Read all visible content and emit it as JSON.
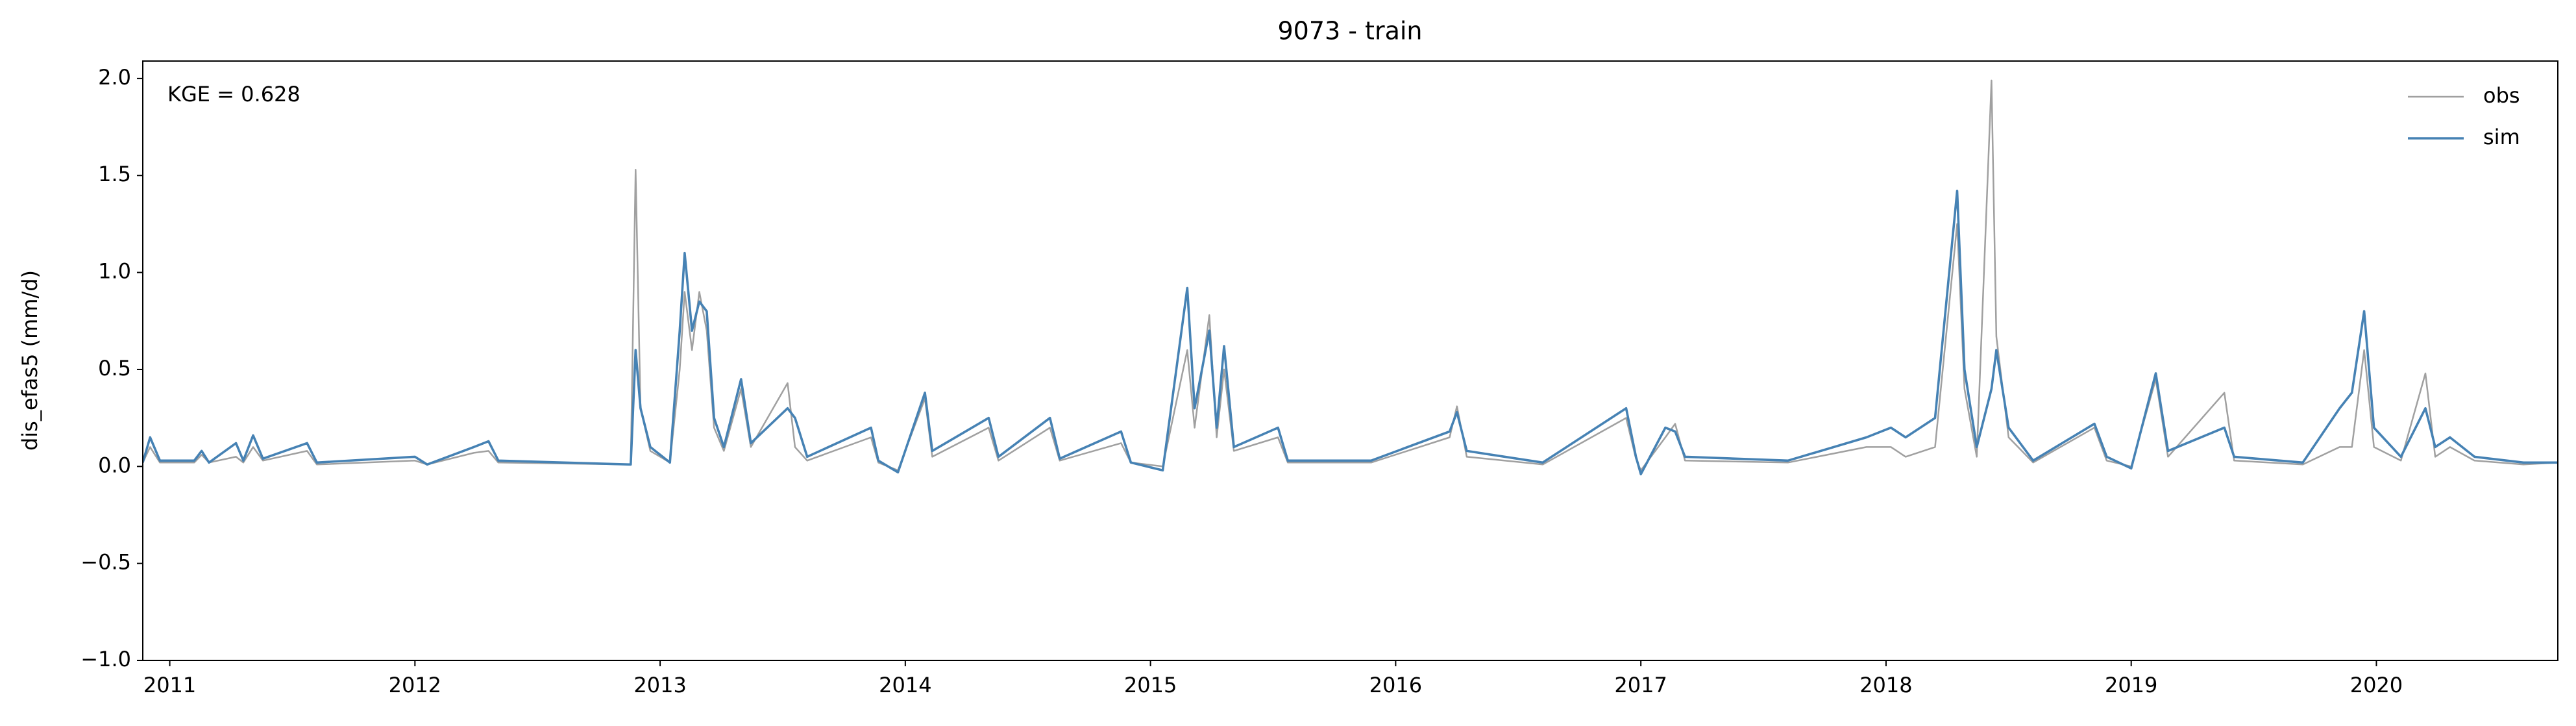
{
  "chart_data": {
    "type": "line",
    "title": "9073 - train",
    "ylabel": "dis_efas5 (mm/d)",
    "annotation": "KGE = 0.628",
    "x": [
      2010.89,
      2010.92,
      2010.96,
      2011.1,
      2011.13,
      2011.16,
      2011.27,
      2011.3,
      2011.34,
      2011.38,
      2011.56,
      2011.6,
      2012.0,
      2012.05,
      2012.24,
      2012.3,
      2012.34,
      2012.88,
      2012.9,
      2012.92,
      2012.96,
      2013.04,
      2013.08,
      2013.1,
      2013.13,
      2013.16,
      2013.19,
      2013.22,
      2013.26,
      2013.33,
      2013.37,
      2013.52,
      2013.55,
      2013.6,
      2013.86,
      2013.89,
      2013.97,
      2014.08,
      2014.11,
      2014.34,
      2014.38,
      2014.59,
      2014.63,
      2014.88,
      2014.92,
      2015.05,
      2015.15,
      2015.18,
      2015.24,
      2015.27,
      2015.3,
      2015.34,
      2015.52,
      2015.56,
      2015.9,
      2016.22,
      2016.25,
      2016.29,
      2016.6,
      2016.94,
      2016.98,
      2017.0,
      2017.1,
      2017.14,
      2017.18,
      2017.6,
      2017.92,
      2018.02,
      2018.08,
      2018.2,
      2018.29,
      2018.32,
      2018.37,
      2018.43,
      2018.45,
      2018.5,
      2018.6,
      2018.85,
      2018.9,
      2019.0,
      2019.1,
      2019.15,
      2019.38,
      2019.42,
      2019.7,
      2019.85,
      2019.9,
      2019.95,
      2019.99,
      2020.1,
      2020.2,
      2020.24,
      2020.3,
      2020.4,
      2020.6,
      2020.74
    ],
    "series": [
      {
        "name": "obs",
        "color": "#a0a0a0",
        "values": [
          0.02,
          0.1,
          0.02,
          0.02,
          0.06,
          0.02,
          0.05,
          0.02,
          0.1,
          0.03,
          0.08,
          0.01,
          0.03,
          0.01,
          0.07,
          0.08,
          0.02,
          0.01,
          1.53,
          0.3,
          0.08,
          0.02,
          0.5,
          0.9,
          0.6,
          0.9,
          0.7,
          0.2,
          0.08,
          0.4,
          0.1,
          0.43,
          0.1,
          0.03,
          0.15,
          0.02,
          -0.02,
          0.35,
          0.05,
          0.2,
          0.03,
          0.2,
          0.03,
          0.12,
          0.02,
          0.0,
          0.6,
          0.2,
          0.78,
          0.15,
          0.5,
          0.08,
          0.15,
          0.02,
          0.02,
          0.15,
          0.31,
          0.05,
          0.01,
          0.25,
          0.04,
          -0.02,
          0.15,
          0.22,
          0.03,
          0.02,
          0.1,
          0.1,
          0.05,
          0.1,
          1.25,
          0.4,
          0.05,
          1.99,
          0.67,
          0.15,
          0.02,
          0.2,
          0.03,
          0.0,
          0.45,
          0.05,
          0.38,
          0.03,
          0.01,
          0.1,
          0.1,
          0.6,
          0.1,
          0.03,
          0.48,
          0.05,
          0.1,
          0.03,
          0.01,
          0.02
        ]
      },
      {
        "name": "sim",
        "color": "#4682b4",
        "values": [
          0.02,
          0.15,
          0.03,
          0.03,
          0.08,
          0.02,
          0.12,
          0.03,
          0.16,
          0.04,
          0.12,
          0.02,
          0.05,
          0.01,
          0.1,
          0.13,
          0.03,
          0.01,
          0.6,
          0.3,
          0.1,
          0.02,
          0.7,
          1.1,
          0.7,
          0.85,
          0.8,
          0.25,
          0.1,
          0.45,
          0.12,
          0.3,
          0.25,
          0.05,
          0.2,
          0.03,
          -0.03,
          0.38,
          0.08,
          0.25,
          0.05,
          0.25,
          0.04,
          0.18,
          0.02,
          -0.02,
          0.92,
          0.3,
          0.7,
          0.2,
          0.62,
          0.1,
          0.2,
          0.03,
          0.03,
          0.18,
          0.28,
          0.08,
          0.02,
          0.3,
          0.05,
          -0.04,
          0.2,
          0.18,
          0.05,
          0.03,
          0.15,
          0.2,
          0.15,
          0.25,
          1.42,
          0.5,
          0.1,
          0.4,
          0.6,
          0.2,
          0.03,
          0.22,
          0.05,
          -0.01,
          0.48,
          0.08,
          0.2,
          0.05,
          0.02,
          0.3,
          0.38,
          0.8,
          0.2,
          0.05,
          0.3,
          0.1,
          0.15,
          0.05,
          0.02,
          0.02
        ]
      }
    ],
    "xlim": [
      2010.89,
      2020.74
    ],
    "xticks": [
      2011,
      2012,
      2013,
      2014,
      2015,
      2016,
      2017,
      2018,
      2019,
      2020
    ],
    "ylim": [
      -1.0,
      2.09
    ],
    "yticks": [
      {
        "value": -1.0,
        "label": "−1.0"
      },
      {
        "value": -0.5,
        "label": "−0.5"
      },
      {
        "value": 0.0,
        "label": "0.0"
      },
      {
        "value": 0.5,
        "label": "0.5"
      },
      {
        "value": 1.0,
        "label": "1.0"
      },
      {
        "value": 1.5,
        "label": "1.5"
      },
      {
        "value": 2.0,
        "label": "2.0"
      }
    ],
    "grid": false,
    "legend": "upper right"
  }
}
